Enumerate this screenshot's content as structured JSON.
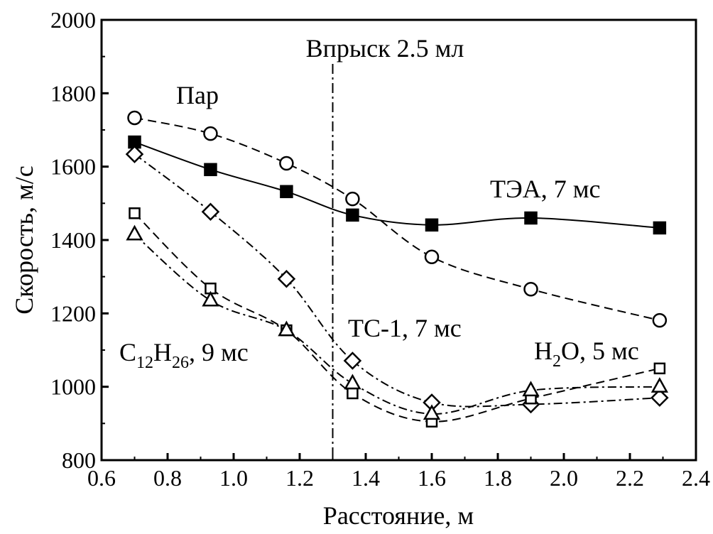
{
  "chart_data": {
    "type": "line",
    "xlabel": "Расстояние, м",
    "ylabel": "Скорость, м/с",
    "xlim": [
      0.6,
      2.4
    ],
    "ylim": [
      800,
      2000
    ],
    "xticks": [
      "0.6",
      "0.8",
      "1.0",
      "1.2",
      "1.4",
      "1.6",
      "1.8",
      "2.0",
      "2.2",
      "2.4"
    ],
    "yticks": [
      "800",
      "1000",
      "1200",
      "1400",
      "1600",
      "1800",
      "2000"
    ],
    "grid": false,
    "x": [
      0.7,
      0.93,
      1.16,
      1.36,
      1.6,
      1.9,
      2.29
    ],
    "series": [
      {
        "marker": "filled-square",
        "line": "solid",
        "values": [
          1667,
          1592,
          1532,
          1468,
          1441,
          1460,
          1433
        ]
      },
      {
        "marker": "open-circle",
        "line": "dashed",
        "values": [
          1733,
          1690,
          1609,
          1512,
          1354,
          1266,
          1181
        ]
      },
      {
        "marker": "open-diamond",
        "line": "dash-dot",
        "values": [
          1634,
          1477,
          1294,
          1071,
          957,
          952,
          970
        ]
      },
      {
        "marker": "open-square",
        "line": "dashed",
        "values": [
          1473,
          1268,
          1154,
          982,
          905,
          968,
          1050
        ]
      },
      {
        "marker": "open-triangle",
        "line": "dash-dot",
        "values": [
          1415,
          1235,
          1154,
          1009,
          926,
          990,
          1000
        ]
      }
    ],
    "vertical_line": {
      "x": 1.3,
      "style": "dash-dot",
      "label": "Впрыск 2.5 мл"
    },
    "annotations": {
      "steam": "Пар",
      "tea": "ТЭА, 7 мс",
      "ts1": "ТС-1, 7 мс",
      "water_pre": "H",
      "water_sub": "2",
      "water_post": "O, 5 мс",
      "dodecane_a": "C",
      "dodecane_b": "12",
      "dodecane_c": "H",
      "dodecane_d": "26",
      "dodecane_e": ", 9 мс"
    }
  }
}
